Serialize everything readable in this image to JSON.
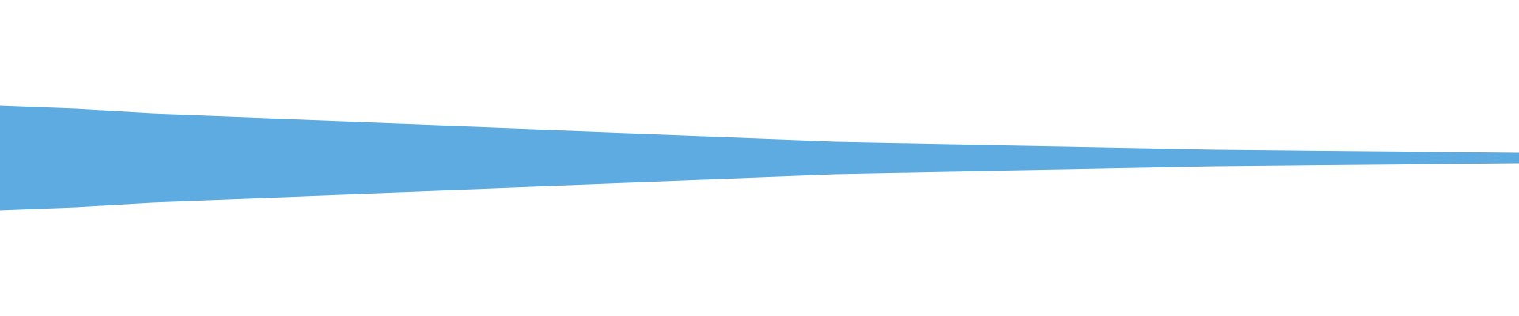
{
  "chart_data": {
    "type": "waveform",
    "color": "#5dabe1",
    "xlim": [
      0,
      1
    ],
    "ylim": [
      -1,
      1
    ],
    "x": [
      0,
      0.05,
      0.1,
      0.15,
      0.2,
      0.25,
      0.3,
      0.35,
      0.4,
      0.45,
      0.5,
      0.55,
      0.6,
      0.65,
      0.7,
      0.75,
      0.8,
      0.85,
      0.9,
      0.95,
      1
    ],
    "values": [
      0.33,
      0.31,
      0.28,
      0.26,
      0.24,
      0.22,
      0.2,
      0.18,
      0.16,
      0.14,
      0.12,
      0.1,
      0.09,
      0.08,
      0.07,
      0.06,
      0.05,
      0.045,
      0.04,
      0.035,
      0.03
    ]
  }
}
